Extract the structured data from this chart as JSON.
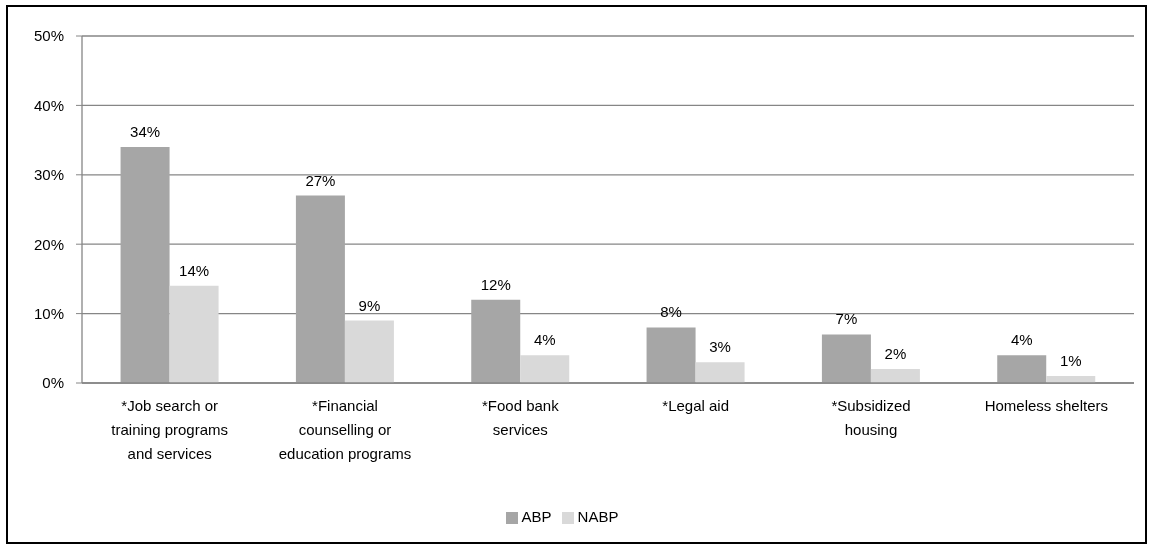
{
  "chart_data": {
    "type": "bar",
    "categories": [
      "*Job search or training programs and services",
      "*Financial counselling or education programs",
      "*Food bank services",
      "*Legal aid",
      "*Subsidized housing",
      "Homeless shelters"
    ],
    "series": [
      {
        "name": "ABP",
        "color": "#a6a6a6",
        "values": [
          34,
          27,
          12,
          8,
          7,
          4
        ],
        "value_labels": [
          "34%",
          "27%",
          "12%",
          "8%",
          "7%",
          "4%"
        ]
      },
      {
        "name": "NABP",
        "color": "#d9d9d9",
        "values": [
          14,
          9,
          4,
          3,
          2,
          1
        ],
        "value_labels": [
          "14%",
          "9%",
          "4%",
          "3%",
          "2%",
          "1%"
        ]
      }
    ],
    "ylim": [
      0,
      50
    ],
    "yticks": [
      {
        "value": 0,
        "label": "0%"
      },
      {
        "value": 10,
        "label": "10%"
      },
      {
        "value": 20,
        "label": "20%"
      },
      {
        "value": 30,
        "label": "30%"
      },
      {
        "value": 40,
        "label": "40%"
      },
      {
        "value": 50,
        "label": "50%"
      }
    ],
    "grid": "y",
    "legend": "bottom"
  }
}
